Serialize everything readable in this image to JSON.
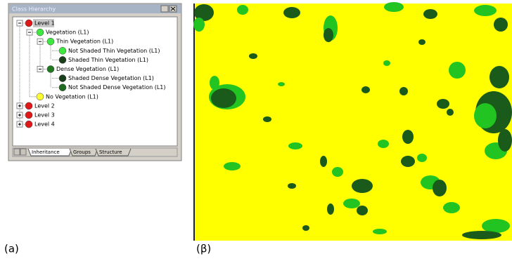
{
  "window": {
    "title": "Class Hierarchy"
  },
  "tree": {
    "nodes": [
      "Level 1",
      "Vegetation (L1)",
      "Thin Vegetation (L1)",
      "Not Shaded Thin Vegetation (L1)",
      "Shaded Thin Vegetation (L1)",
      "Dense Vegetation (L1)",
      "Shaded Dense Vegetation (L1)",
      "Not Shaded Dense Vegetation (L1)",
      "No Vegetation (L1)",
      "Level 2",
      "Level 3",
      "Level 4"
    ]
  },
  "tabs": [
    "Inheritance",
    "Groups",
    "Structure"
  ],
  "captions": [
    "(a)",
    "(β)"
  ]
}
